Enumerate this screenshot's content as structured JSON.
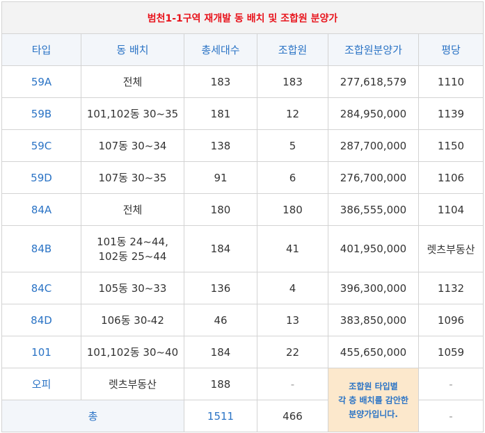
{
  "title": "범천1-1구역 재개발 동 배치 및 조합원 분양가",
  "headers": [
    "타입",
    "동 배치",
    "총세대수",
    "조합원",
    "조합원분양가",
    "평당"
  ],
  "rows": [
    {
      "type": "59A",
      "dong": "전체",
      "total": "183",
      "members": "183",
      "price": "277,618,579",
      "per_pyeong": "1110"
    },
    {
      "type": "59B",
      "dong": "101,102동 30~35",
      "total": "181",
      "members": "12",
      "price": "284,950,000",
      "per_pyeong": "1139"
    },
    {
      "type": "59C",
      "dong": "107동 30~34",
      "total": "138",
      "members": "5",
      "price": "287,700,000",
      "per_pyeong": "1150"
    },
    {
      "type": "59D",
      "dong": "107동 30~35",
      "total": "91",
      "members": "6",
      "price": "276,700,000",
      "per_pyeong": "1106"
    },
    {
      "type": "84A",
      "dong": "전체",
      "total": "180",
      "members": "180",
      "price": "386,555,000",
      "per_pyeong": "1104"
    },
    {
      "type": "84B",
      "dong_line1": "101동 24~44,",
      "dong_line2": "102동 25~44",
      "total": "184",
      "members": "41",
      "price": "401,950,000",
      "per_pyeong": "렛츠부동산"
    },
    {
      "type": "84C",
      "dong": "105동 30~33",
      "total": "136",
      "members": "4",
      "price": "396,300,000",
      "per_pyeong": "1132"
    },
    {
      "type": "84D",
      "dong": "106동 30-42",
      "total": "46",
      "members": "13",
      "price": "383,850,000",
      "per_pyeong": "1096"
    },
    {
      "type": "101",
      "dong": "101,102동 30~40",
      "total": "184",
      "members": "22",
      "price": "455,650,000",
      "per_pyeong": "1059"
    }
  ],
  "officetel": {
    "type": "오피",
    "dong": "렛츠부동산",
    "total": "188",
    "members": "-",
    "per_pyeong": "-"
  },
  "note": {
    "line1": "조합원 타입별",
    "line2": "각 층 배치를 감안한",
    "line3": "분양가입니다."
  },
  "total_row": {
    "label": "총",
    "total": "1511",
    "members": "466",
    "per_pyeong": "-"
  }
}
